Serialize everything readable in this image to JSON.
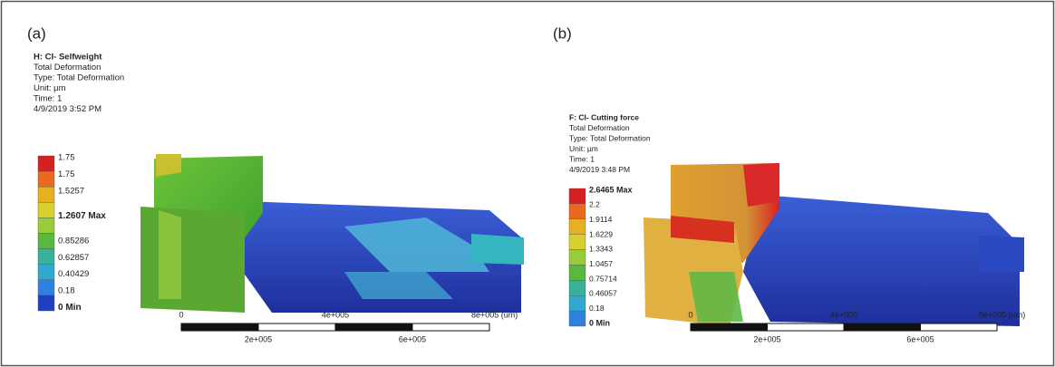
{
  "panels": [
    {
      "label": "(a)",
      "title": "H: CI- Selfweight",
      "lines": [
        "Total Deformation",
        "Type: Total Deformation",
        "Unit: µm",
        "Time: 1",
        "4/9/2019 3:52 PM"
      ],
      "legend": [
        "1.75",
        "1.75",
        "1.5257",
        "1.2607 Max",
        "0.85286",
        "0.62857",
        "0.40429",
        "0.18",
        "0 Min"
      ],
      "scale_top": [
        "0",
        "4e+005",
        "8e+005 (um)"
      ],
      "scale_bottom": [
        "2e+005",
        "6e+005"
      ]
    },
    {
      "label": "(b)",
      "title": "F: CI- Cutting force",
      "lines": [
        "Total Deformation",
        "Type: Total Deformation",
        "Unit: µm",
        "Time: 1",
        "4/9/2019 3:48 PM"
      ],
      "legend": [
        "2.6465 Max",
        "2.2",
        "1.9114",
        "1.6229",
        "1.3343",
        "1.0457",
        "0.75714",
        "0.46057",
        "0.18",
        "0 Min"
      ],
      "scale_top": [
        "0",
        "4e+005",
        "8e+005 (um)"
      ],
      "scale_bottom": [
        "2e+005",
        "6e+005"
      ]
    }
  ]
}
